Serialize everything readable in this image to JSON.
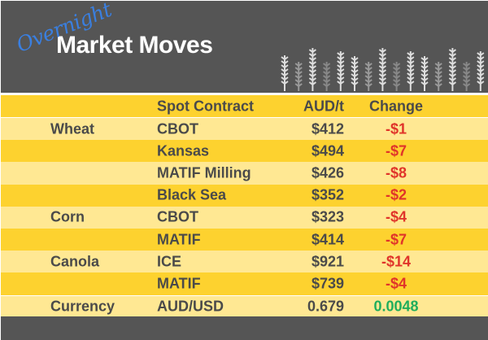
{
  "header": {
    "script": "Overnight",
    "title": "Market Moves"
  },
  "columns": {
    "contract": "Spot Contract",
    "price": "AUD/t",
    "change": "Change"
  },
  "rows": [
    {
      "commodity": "Wheat",
      "contract": "CBOT",
      "price": "$412",
      "change": "-$1",
      "dir": "neg"
    },
    {
      "commodity": "",
      "contract": "Kansas",
      "price": "$494",
      "change": "-$7",
      "dir": "neg"
    },
    {
      "commodity": "",
      "contract": "MATIF Milling",
      "price": "$426",
      "change": "-$8",
      "dir": "neg"
    },
    {
      "commodity": "",
      "contract": "Black Sea",
      "price": "$352",
      "change": "-$2",
      "dir": "neg"
    },
    {
      "commodity": "Corn",
      "contract": "CBOT",
      "price": "$323",
      "change": "-$4",
      "dir": "neg"
    },
    {
      "commodity": "",
      "contract": "MATIF",
      "price": "$414",
      "change": "-$7",
      "dir": "neg"
    },
    {
      "commodity": "Canola",
      "contract": "ICE",
      "price": "$921",
      "change": "-$14",
      "dir": "neg"
    },
    {
      "commodity": "",
      "contract": "MATIF",
      "price": "$739",
      "change": "-$4",
      "dir": "neg"
    }
  ],
  "currency": {
    "commodity": "Currency",
    "contract": "AUD/USD",
    "price": "0.679",
    "change": "0.0048"
  },
  "colors": {
    "header_bg": "#555555",
    "row_dark": "#FDD22F",
    "row_light": "#FFE893",
    "negative": "#e0342a",
    "positive": "#1fae5c",
    "icon_wheat": "wheat-stalk-icon"
  }
}
